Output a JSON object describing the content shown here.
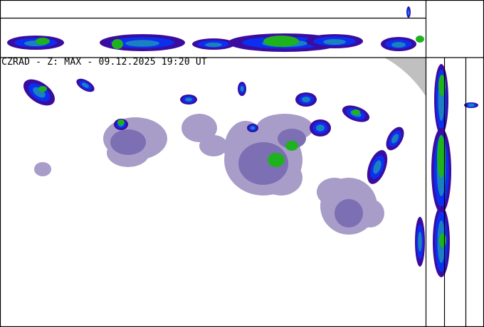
{
  "product_title": "CZRAD - Z: MAX - 09.12.2025 19:20 UT",
  "colors": {
    "no_coverage": "#c0c0c0",
    "weak_echo_light": "#a89cc8",
    "weak_echo": "#7c6fb4",
    "dark_violet": "#3a0ca0",
    "blue": "#0a2ff0",
    "teal": "#1c7fc0",
    "green": "#1eb21e",
    "frame": "#000000"
  }
}
